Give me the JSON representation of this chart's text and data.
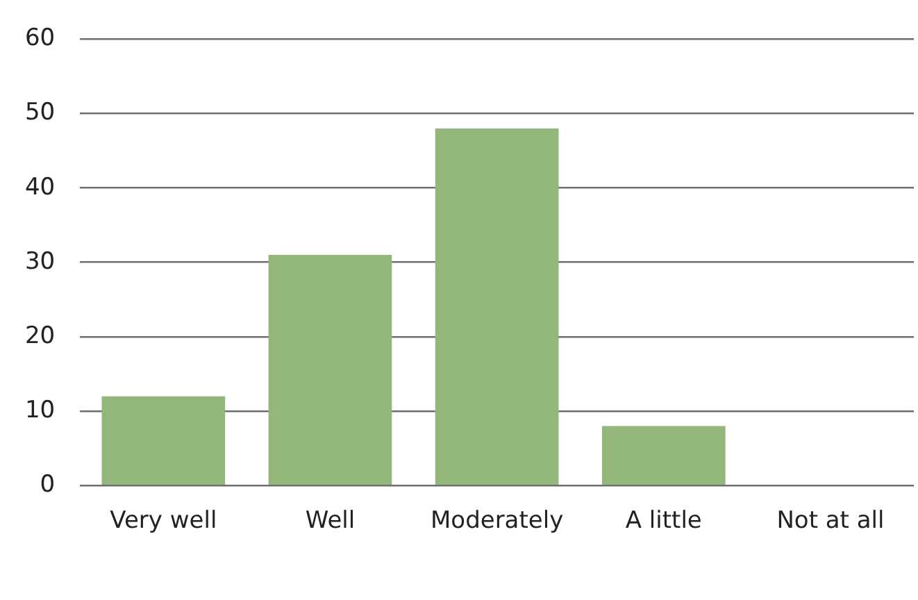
{
  "chart_data": {
    "type": "bar",
    "categories": [
      "Very well",
      "Well",
      "Moderately",
      "A little",
      "Not at all"
    ],
    "values": [
      12,
      31,
      48,
      8,
      0
    ],
    "color": "#93b77a",
    "ylim": [
      0,
      60
    ],
    "yticks": [
      0,
      10,
      20,
      30,
      40,
      50,
      60
    ],
    "grid": "y",
    "legend": false
  }
}
